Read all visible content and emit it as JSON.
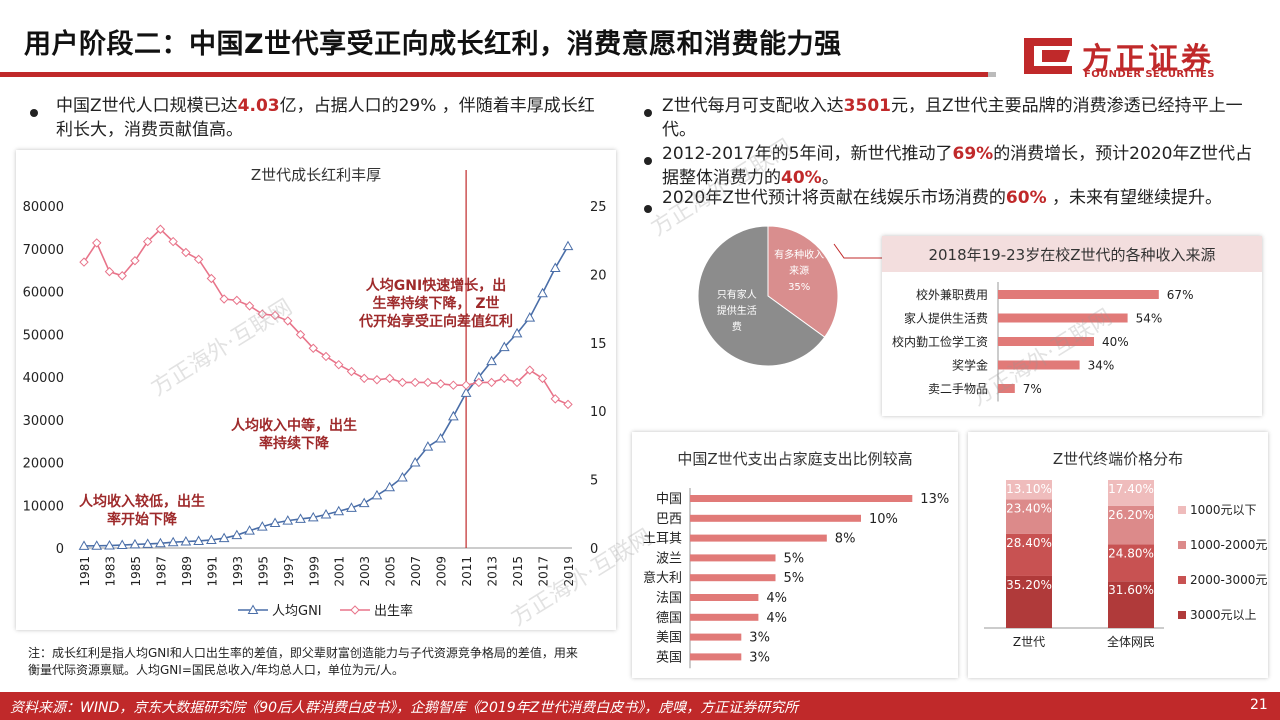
{
  "header": {
    "title": "用户阶段二：中国Z世代享受正向成长红利，消费意愿和消费能力强",
    "logo_cn": "方正证券",
    "logo_en": "FOUNDER SECURITIES"
  },
  "left_bullet": {
    "pre": "中国Z世代人口规模已达",
    "highlight": "4.03",
    "post": "亿，占据人口的29% ，伴随着丰厚成长红利长大，消费贡献值高。"
  },
  "right_bullets": [
    {
      "pre": "Z世代每月可支配收入达",
      "highlight": "3501",
      "post": "元，且Z世代主要品牌的消费渗透已经持平上一代。"
    },
    {
      "pre": "2012-2017年的5年间，新世代推动了",
      "highlight": "69%",
      "mid": "的消费增长，预计2020年Z世代占据整体消费力的",
      "highlight2": "40%",
      "post": "。"
    },
    {
      "pre": "2020年Z世代预计将贡献在线娱乐市场消费的",
      "highlight": "60%",
      "post": " ，未来有望继续提升。"
    }
  ],
  "watermark": "方正海外·互联网",
  "note": "注：成长红利是指人均GNI和人口出生率的差值，即父辈财富创造能力与子代资源竞争格局的差值，用来衡量代际资源禀赋。人均GNI=国民总收入/年均总人口，单位为元/人。",
  "footer": {
    "source": "资料来源：WIND，京东大数据研究院《90后人群消费白皮书》，企鹅智库《2019年Z世代消费白皮书》，虎嗅，方正证券研究所",
    "page": "21"
  },
  "colors": {
    "accent": "#c0292a",
    "gni": "#4a6ea8",
    "birth": "#e8748a",
    "pie_dark": "#8c8c8c",
    "pie_light": "#d98e8e"
  },
  "chart_data": [
    {
      "type": "line",
      "title": "Z世代成长红利丰厚",
      "x": [
        1981,
        1982,
        1983,
        1984,
        1985,
        1986,
        1987,
        1988,
        1989,
        1990,
        1991,
        1992,
        1993,
        1994,
        1995,
        1996,
        1997,
        1998,
        1999,
        2000,
        2001,
        2002,
        2003,
        2004,
        2005,
        2006,
        2007,
        2008,
        2009,
        2010,
        2011,
        2012,
        2013,
        2014,
        2015,
        2016,
        2017,
        2018,
        2019
      ],
      "x_tick_labels": [
        "1981",
        "1983",
        "1985",
        "1987",
        "1989",
        "1991",
        "1993",
        "1995",
        "1997",
        "1999",
        "2001",
        "2003",
        "2005",
        "2007",
        "2009",
        "2011",
        "2013",
        "2015",
        "2017",
        "2019"
      ],
      "y_left_ticks": [
        "0",
        "10000",
        "20000",
        "30000",
        "40000",
        "50000",
        "60000",
        "70000",
        "80000"
      ],
      "y_right_ticks": [
        "0",
        "5",
        "10",
        "15",
        "20",
        "25"
      ],
      "ylim_left": [
        0,
        80000
      ],
      "ylim_right": [
        0,
        25
      ],
      "series": [
        {
          "name": "人均GNI",
          "axis": "left",
          "values": [
            490,
            525,
            580,
            690,
            850,
            955,
            1100,
            1350,
            1520,
            1650,
            1880,
            2300,
            3000,
            4050,
            5000,
            5850,
            6400,
            6800,
            7150,
            7840,
            8600,
            9400,
            10500,
            12300,
            14200,
            16500,
            20000,
            23700,
            25600,
            30800,
            36300,
            40000,
            43700,
            47000,
            50200,
            53900,
            59600,
            65500,
            70600
          ]
        },
        {
          "name": "出生率",
          "axis": "right",
          "values": [
            20.9,
            22.3,
            20.2,
            19.9,
            21.0,
            22.4,
            23.3,
            22.4,
            21.6,
            21.1,
            19.7,
            18.2,
            18.1,
            17.7,
            17.1,
            17.0,
            16.6,
            15.6,
            14.6,
            14.0,
            13.4,
            12.9,
            12.4,
            12.3,
            12.4,
            12.1,
            12.1,
            12.1,
            12.0,
            11.9,
            11.9,
            12.1,
            12.1,
            12.4,
            12.1,
            13.0,
            12.4,
            10.9,
            10.5
          ]
        }
      ],
      "vline_x": 2011,
      "annotations": [
        "人均收入较低，出生率开始下降",
        "人均收入中等，出生率持续下降",
        "人均GNI快速增长，出生率持续下降， Z世代开始享受正向差值红利"
      ]
    },
    {
      "type": "pie",
      "labels": [
        "有多种收入来源",
        "只有家人提供生活费"
      ],
      "values": [
        35,
        65
      ],
      "value_labels": [
        "35%",
        ""
      ]
    },
    {
      "type": "bar",
      "title": "2018年19-23岁在校Z世代的各种收入来源",
      "categories": [
        "校外兼职费用",
        "家人提供生活费",
        "校内勤工俭学工资",
        "奖学金",
        "卖二手物品"
      ],
      "values": [
        67,
        54,
        40,
        34,
        7
      ],
      "value_labels": [
        "67%",
        "54%",
        "40%",
        "34%",
        "7%"
      ]
    },
    {
      "type": "bar",
      "title": "中国Z世代支出占家庭支出比例较高",
      "categories": [
        "中国",
        "巴西",
        "土耳其",
        "波兰",
        "意大利",
        "法国",
        "德国",
        "美国",
        "英国"
      ],
      "values": [
        13,
        10,
        8,
        5,
        5,
        4,
        4,
        3,
        3
      ],
      "value_labels": [
        "13%",
        "10%",
        "8%",
        "5%",
        "5%",
        "4%",
        "4%",
        "3%",
        "3%"
      ]
    },
    {
      "type": "bar",
      "stacked": true,
      "title": "Z世代终端价格分布",
      "categories": [
        "Z世代",
        "全体网民"
      ],
      "series": [
        {
          "name": "3000元以上",
          "values": [
            35.2,
            31.6
          ],
          "labels": [
            "35.20%",
            "31.60%"
          ]
        },
        {
          "name": "2000-3000元",
          "values": [
            28.4,
            24.8
          ],
          "labels": [
            "28.40%",
            "24.80%"
          ]
        },
        {
          "name": "1000-2000元",
          "values": [
            23.4,
            26.2
          ],
          "labels": [
            "23.40%",
            "26.20%"
          ]
        },
        {
          "name": "1000元以下",
          "values": [
            13.1,
            17.4
          ],
          "labels": [
            "13.10%",
            "17.40%"
          ]
        }
      ]
    }
  ]
}
